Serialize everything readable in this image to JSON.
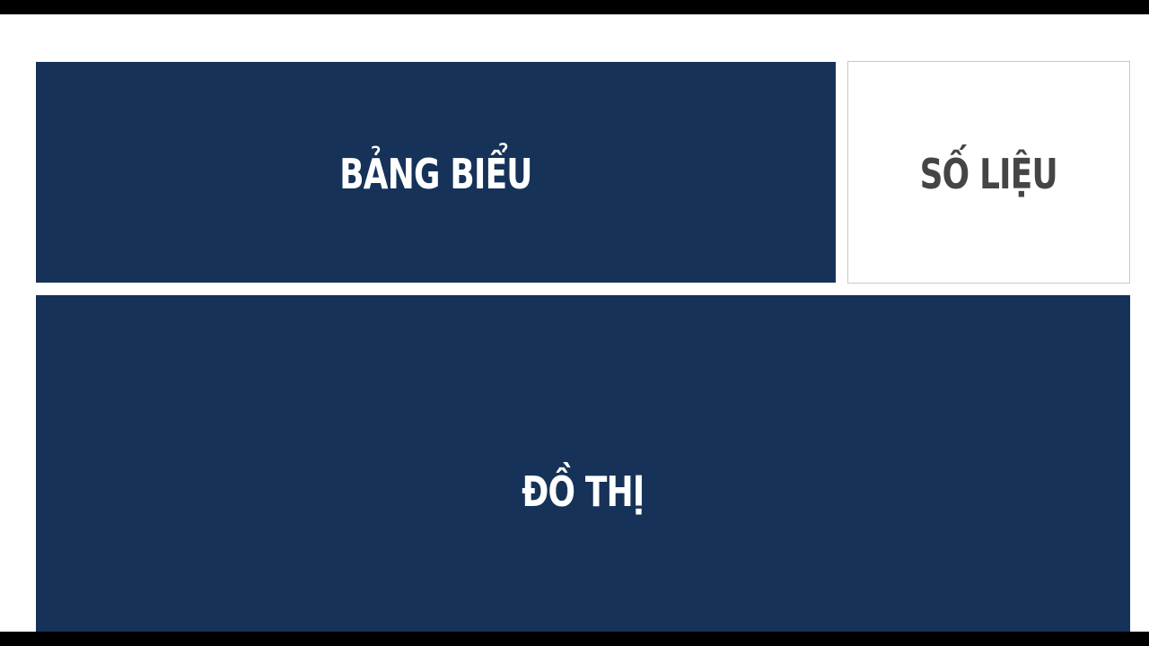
{
  "slide": {
    "tiles": [
      {
        "label": "BẢNG BIỂU",
        "style": "dark"
      },
      {
        "label": "SỐ LIỆU",
        "style": "light"
      },
      {
        "label": "ĐỒ THỊ",
        "style": "dark"
      }
    ]
  },
  "colors": {
    "tile_dark_bg": "#163259",
    "tile_dark_text": "#ffffff",
    "tile_light_bg": "#ffffff",
    "tile_light_text": "#454545",
    "tile_light_border": "#c8c8c8",
    "letterbox": "#000000"
  }
}
